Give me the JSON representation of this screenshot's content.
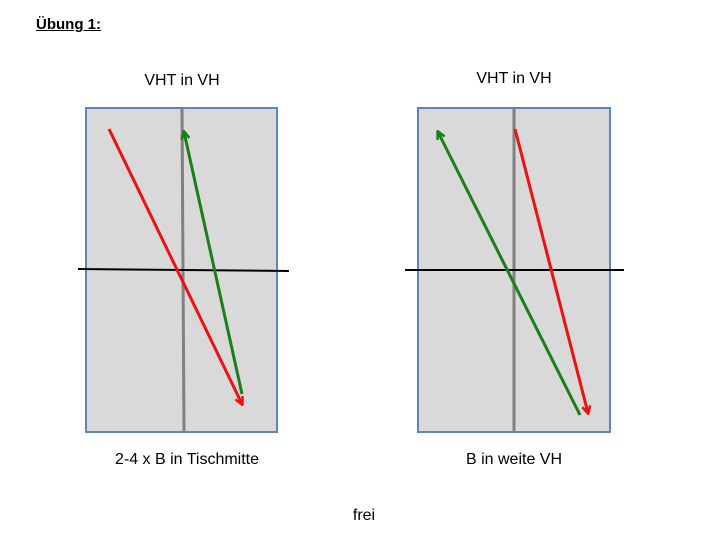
{
  "title": "Übung 1:",
  "footer": "frei",
  "colors": {
    "table": "#d9d9d9",
    "table_border": "#5b86c0",
    "net": "#000000",
    "center_line": "#808080",
    "red_arrow": "#ee1111",
    "green_arrow": "#1a7f1a"
  },
  "diagrams": [
    {
      "top_label": "VHT in VH",
      "bottom_label": "2-4 x B in Tischmitte"
    },
    {
      "top_label": "VHT in VH",
      "bottom_label": "B in weite VH"
    }
  ]
}
